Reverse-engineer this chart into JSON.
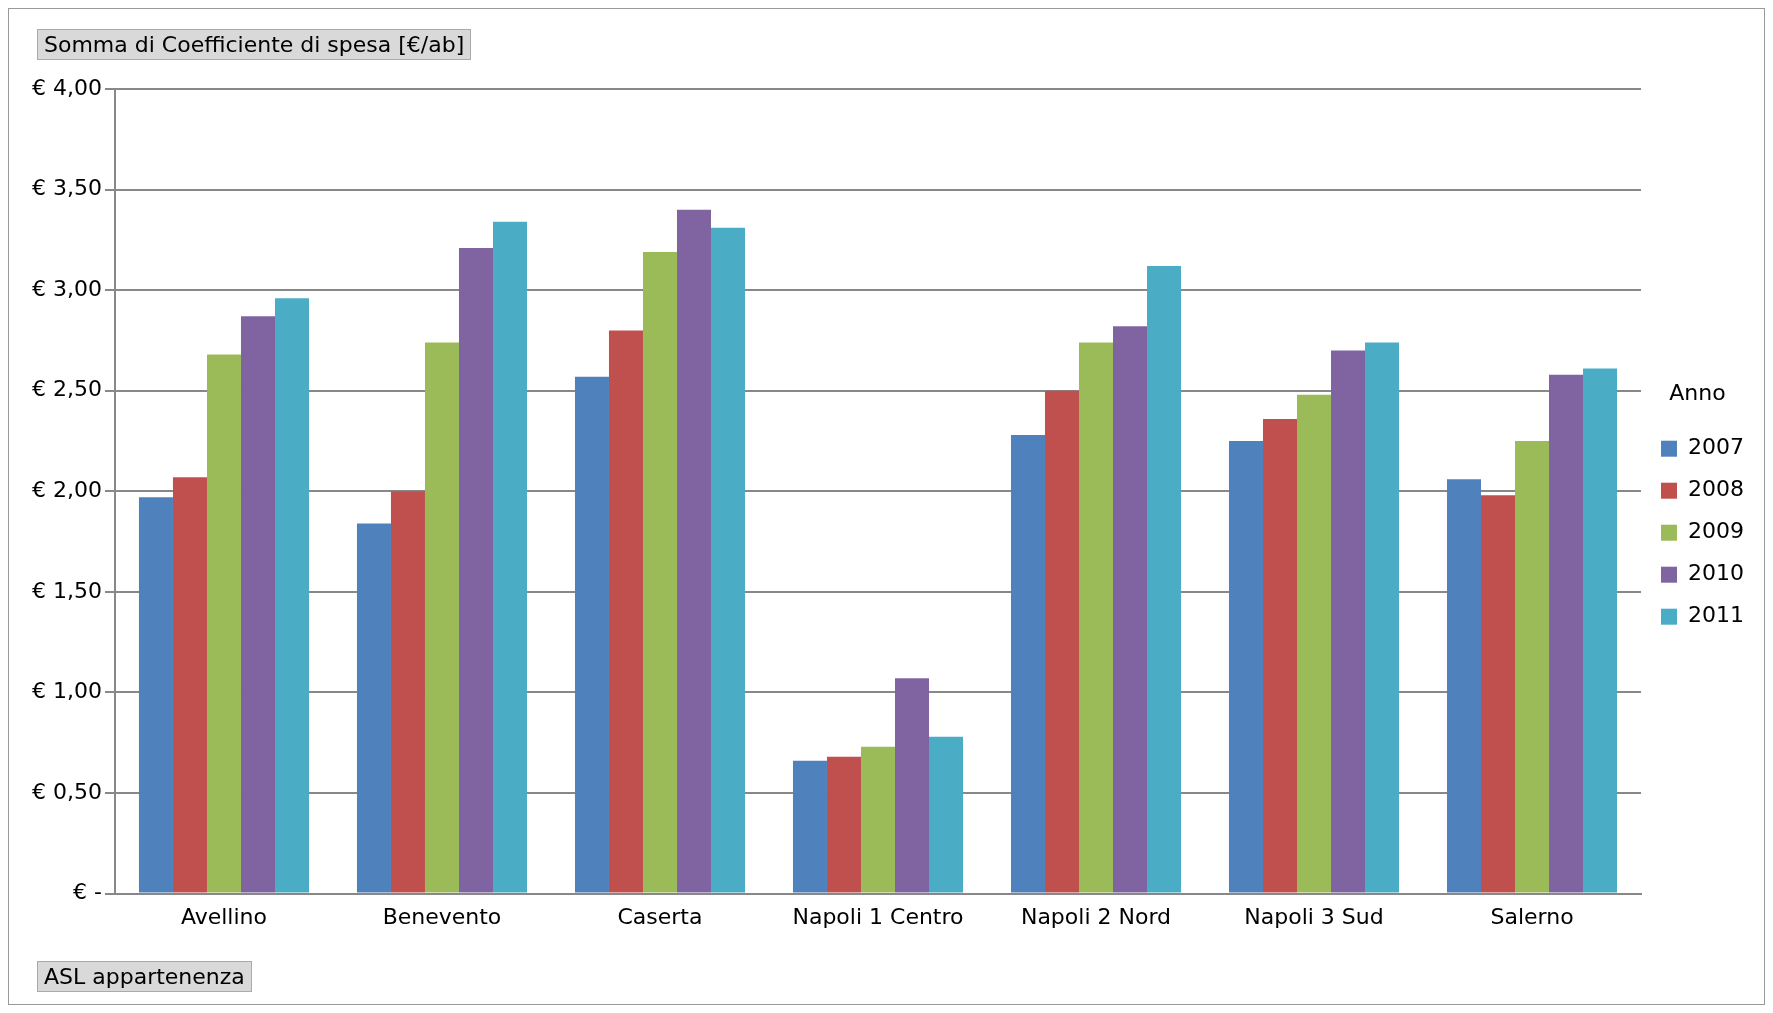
{
  "chart_data": {
    "type": "bar",
    "title": "Somma di Coefficiente di spesa [€/ab]",
    "xlabel": "ASL appartenenza",
    "legend_title": "Anno",
    "categories": [
      "Avellino",
      "Benevento",
      "Caserta",
      "Napoli 1 Centro",
      "Napoli 2 Nord",
      "Napoli 3 Sud",
      "Salerno"
    ],
    "series": [
      {
        "name": "2007",
        "color": "#4f81bd",
        "values": [
          1.97,
          1.84,
          2.57,
          0.66,
          2.28,
          2.25,
          2.06
        ]
      },
      {
        "name": "2008",
        "color": "#c0504d",
        "values": [
          2.07,
          2.0,
          2.8,
          0.68,
          2.5,
          2.36,
          1.98
        ]
      },
      {
        "name": "2009",
        "color": "#9bbb59",
        "values": [
          2.68,
          2.74,
          3.19,
          0.73,
          2.74,
          2.48,
          2.25
        ]
      },
      {
        "name": "2010",
        "color": "#8064a2",
        "values": [
          2.87,
          3.21,
          3.4,
          1.07,
          2.82,
          2.7,
          2.58
        ]
      },
      {
        "name": "2011",
        "color": "#4bacc6",
        "values": [
          2.96,
          3.34,
          3.31,
          0.78,
          3.12,
          2.74,
          2.61
        ]
      }
    ],
    "ylim": [
      0,
      4
    ],
    "yticks": [
      {
        "value": 0,
        "label": "€ -"
      },
      {
        "value": 0.5,
        "label": "€ 0,50"
      },
      {
        "value": 1,
        "label": "€ 1,00"
      },
      {
        "value": 1.5,
        "label": "€ 1,50"
      },
      {
        "value": 2,
        "label": "€ 2,00"
      },
      {
        "value": 2.5,
        "label": "€ 2,50"
      },
      {
        "value": 3,
        "label": "€ 3,00"
      },
      {
        "value": 3.5,
        "label": "€ 3,50"
      },
      {
        "value": 4,
        "label": "€ 4,00"
      }
    ],
    "grid": "y",
    "legend": "right"
  }
}
